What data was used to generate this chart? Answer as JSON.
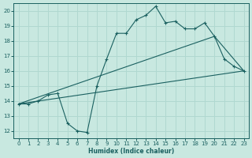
{
  "background_color": "#c8e8e0",
  "grid_color": "#b0d8d0",
  "line_color": "#1a6060",
  "xlabel": "Humidex (Indice chaleur)",
  "xlim": [
    -0.5,
    23.5
  ],
  "ylim": [
    11.5,
    20.5
  ],
  "yticks": [
    12,
    13,
    14,
    15,
    16,
    17,
    18,
    19,
    20
  ],
  "xticks": [
    0,
    1,
    2,
    3,
    4,
    5,
    6,
    7,
    8,
    9,
    10,
    11,
    12,
    13,
    14,
    15,
    16,
    17,
    18,
    19,
    20,
    21,
    22,
    23
  ],
  "curve1_x": [
    0,
    1,
    2,
    3,
    4,
    5,
    6,
    7,
    8,
    9,
    10,
    11,
    12,
    13,
    14,
    15,
    16,
    17,
    18,
    19,
    20,
    21,
    22,
    23
  ],
  "curve1_y": [
    13.8,
    13.8,
    14.0,
    14.4,
    14.5,
    12.5,
    12.0,
    11.9,
    15.0,
    16.8,
    18.5,
    18.5,
    19.4,
    19.7,
    20.3,
    19.2,
    19.3,
    18.8,
    18.8,
    19.2,
    18.3,
    16.8,
    16.3,
    16.0
  ],
  "curve2_x": [
    0,
    23
  ],
  "curve2_y": [
    13.8,
    16.0
  ],
  "curve3_x": [
    0,
    20,
    23
  ],
  "curve3_y": [
    13.8,
    18.3,
    16.0
  ]
}
